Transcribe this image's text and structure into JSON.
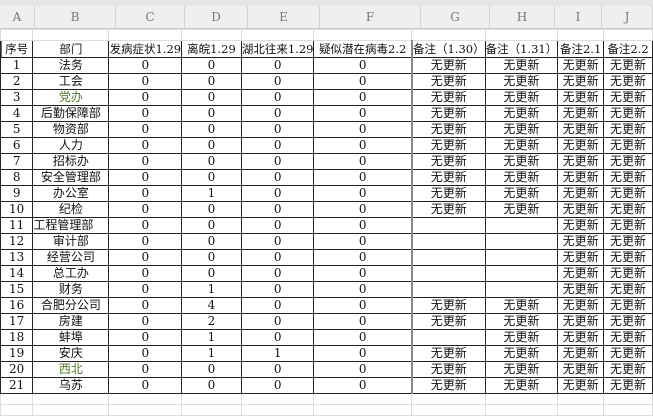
{
  "columns": [
    "A",
    "B",
    "C",
    "D",
    "E",
    "F",
    "G",
    "H",
    "I",
    "J"
  ],
  "headers": [
    "序号",
    "部门",
    "发病症状1.29",
    "离皖1.29",
    "湖北往来1.29",
    "疑似潜在病毒2.2",
    "备注（1.30）",
    "备注（1.31）",
    "备注2.1",
    "备注2.2"
  ],
  "rows": [
    [
      "1",
      "法务",
      "0",
      "0",
      "0",
      "0",
      "无更新",
      "无更新",
      "无更新",
      "无更新"
    ],
    [
      "2",
      "工会",
      "0",
      "0",
      "0",
      "0",
      "无更新",
      "无更新",
      "无更新",
      "无更新"
    ],
    [
      "3",
      "党办",
      "0",
      "0",
      "0",
      "0",
      "无更新",
      "无更新",
      "无更新",
      "无更新"
    ],
    [
      "4",
      "后勤保障部",
      "0",
      "0",
      "0",
      "0",
      "无更新",
      "无更新",
      "无更新",
      "无更新"
    ],
    [
      "5",
      "物资部",
      "0",
      "0",
      "0",
      "0",
      "无更新",
      "无更新",
      "无更新",
      "无更新"
    ],
    [
      "6",
      "人力",
      "0",
      "0",
      "0",
      "0",
      "无更新",
      "无更新",
      "无更新",
      "无更新"
    ],
    [
      "7",
      "招标办",
      "0",
      "0",
      "0",
      "0",
      "无更新",
      "无更新",
      "无更新",
      "无更新"
    ],
    [
      "8",
      "安全管理部",
      "0",
      "0",
      "0",
      "0",
      "无更新",
      "无更新",
      "无更新",
      "无更新"
    ],
    [
      "9",
      "办公室",
      "0",
      "1",
      "0",
      "0",
      "无更新",
      "无更新",
      "无更新",
      "无更新"
    ],
    [
      "10",
      "纪检",
      "0",
      "0",
      "0",
      "0",
      "无更新",
      "无更新",
      "无更新",
      "无更新"
    ],
    [
      "11",
      "工程管理部",
      "0",
      "0",
      "0",
      "0",
      "",
      "",
      "无更新",
      "无更新"
    ],
    [
      "12",
      "审计部",
      "0",
      "0",
      "0",
      "0",
      "",
      "",
      "无更新",
      "无更新"
    ],
    [
      "13",
      "经营公司",
      "0",
      "0",
      "0",
      "0",
      "",
      "",
      "无更新",
      "无更新"
    ],
    [
      "14",
      "总工办",
      "0",
      "0",
      "0",
      "0",
      "",
      "",
      "无更新",
      "无更新"
    ],
    [
      "15",
      "财务",
      "0",
      "1",
      "0",
      "0",
      "",
      "",
      "无更新",
      "无更新"
    ],
    [
      "16",
      "合肥分公司",
      "0",
      "4",
      "0",
      "0",
      "无更新",
      "无更新",
      "无更新",
      "无更新"
    ],
    [
      "17",
      "房建",
      "0",
      "2",
      "0",
      "0",
      "无更新",
      "无更新",
      "无更新",
      "无更新"
    ],
    [
      "18",
      "蚌埠",
      "0",
      "1",
      "0",
      "0",
      "",
      "无更新",
      "无更新",
      "无更新"
    ],
    [
      "19",
      "安庆",
      "0",
      "1",
      "1",
      "0",
      "无更新",
      "无更新",
      "无更新",
      "无更新"
    ],
    [
      "20",
      "西北",
      "0",
      "0",
      "0",
      "0",
      "无更新",
      "无更新",
      "无更新",
      "无更新"
    ],
    [
      "21",
      "乌苏",
      "0",
      "0",
      "0",
      "0",
      "无更新",
      "无更新",
      "无更新",
      "无更新"
    ]
  ],
  "green_departments": [
    "党办",
    "西北"
  ],
  "colors": {
    "green_text": "#4a7a2a",
    "selection": "#2e9e4a"
  }
}
